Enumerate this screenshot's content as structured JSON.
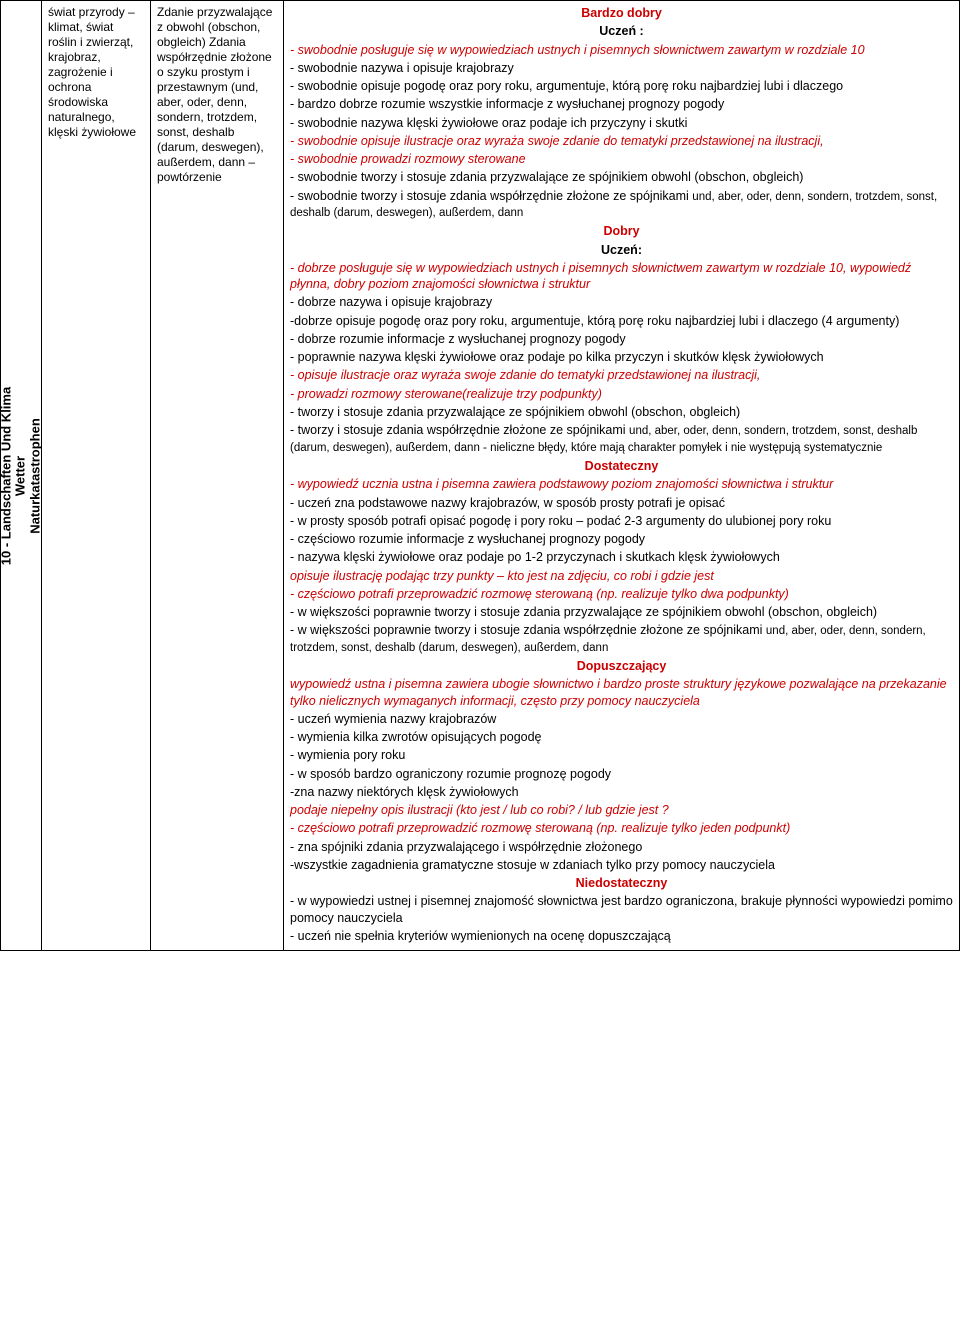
{
  "rotated_title": "10 - Landschaften Und Klima\nWetter\nNaturkatastrophen",
  "col1": "świat przyrody – klimat, świat roślin i zwierząt, krajobraz, zagrożenie i ochrona środowiska naturalnego, klęski żywiołowe",
  "col2": "Zdanie przyzwalające z obwohl (obschon, obgleich) Zdania współrzędnie złożone o szyku prostym i przestawnym (und, aber, oder, denn, sondern, trotzdem, sonst, deshalb (darum, deswegen), außerdem, dann – powtórzenie",
  "h_bd": "Bardzo dobry",
  "h_uc": "Uczeń :",
  "bd": {
    "l1": "- swobodnie posługuje się w wypowiedziach ustnych i pisemnych słownictwem zawartym  w rozdziale 10",
    "l2": "- swobodnie nazywa i opisuje krajobrazy",
    "l3": "- swobodnie opisuje pogodę oraz pory roku, argumentuje, którą porę roku najbardziej lubi i dlaczego",
    "l4": "- bardzo dobrze rozumie wszystkie informacje z wysłuchanej prognozy pogody",
    "l5": "- swobodnie nazywa klęski żywiołowe oraz podaje ich przyczyny i skutki",
    "l6": "- swobodnie opisuje ilustracje oraz wyraża swoje zdanie do tematyki przedstawionej na ilustracji,",
    "l7": "- swobodnie prowadzi rozmowy sterowane",
    "l8": "- swobodnie tworzy i stosuje zdania przyzwalające ze spójnikiem obwohl (obschon, obgleich)",
    "l9a": "- swobodnie tworzy i stosuje zdania współrzędnie złożone ze spójnikami ",
    "l9b": "und, aber, oder, denn, sondern, trotzdem, sonst, deshalb (darum, deswegen), außerdem, dann"
  },
  "h_db": "Dobry",
  "h_uc2": "Uczeń:",
  "db": {
    "l1": "- dobrze posługuje się w wypowiedziach ustnych i pisemnych słownictwem zawartym w rozdziale 10, wypowiedź płynna, dobry poziom znajomości słownictwa i struktur",
    "l2": "- dobrze nazywa i opisuje krajobrazy",
    "l3": "-dobrze  opisuje pogodę oraz pory roku, argumentuje, którą porę roku najbardziej lubi i dlaczego (4 argumenty)",
    "l4": "- dobrze rozumie informacje z wysłuchanej prognozy pogody",
    "l5": "- poprawnie nazywa klęski żywiołowe oraz podaje po kilka przyczyn i skutków klęsk żywiołowych",
    "l6": "- opisuje ilustracje oraz wyraża swoje zdanie do tematyki przedstawionej na ilustracji,",
    "l7": "- prowadzi rozmowy sterowane(realizuje trzy podpunkty)",
    "l8": "- tworzy i stosuje zdania przyzwalające ze spójnikiem obwohl (obschon, obgleich)",
    "l9a": "- tworzy i stosuje zdania współrzędnie złożone ze spójnikami ",
    "l9b": "und, aber, oder, denn, sondern, trotzdem, sonst, deshalb (darum, deswegen), außerdem, dann - nieliczne błędy, które mają charakter pomyłek i nie występują systematycznie"
  },
  "h_ds": "Dostateczny",
  "ds": {
    "l1": "- wypowiedź ucznia ustna i pisemna zawiera podstawowy poziom znajomości słownictwa i struktur",
    "l2": "- uczeń zna podstawowe nazwy krajobrazów, w sposób prosty potrafi je opisać",
    "l3": "- w prosty sposób potrafi opisać pogodę i pory roku – podać 2-3 argumenty  do ulubionej pory roku",
    "l4": "- częściowo rozumie informacje z wysłuchanej prognozy pogody",
    "l5": "- nazywa klęski żywiołowe oraz podaje po 1-2 przyczynach i skutkach klęsk żywiołowych",
    "l6": "opisuje ilustrację podając trzy punkty – kto jest na zdjęciu, co robi i gdzie jest",
    "l7": "- częściowo potrafi przeprowadzić rozmowę sterowaną (np. realizuje tylko dwa podpunkty)",
    "l8": "- w większości poprawnie tworzy i stosuje zdania przyzwalające ze spójnikiem obwohl (obschon, obgleich)",
    "l9a": "- w większości poprawnie tworzy i stosuje zdania współrzędnie złożone ze spójnikami ",
    "l9b": "und, aber, oder, denn, sondern, trotzdem, sonst, deshalb (darum, deswegen), außerdem, dann"
  },
  "h_dp": "Dopuszczający",
  "dp": {
    "l1": "wypowiedź ustna i pisemna zawiera ubogie słownictwo i bardzo proste struktury językowe pozwalające na przekazanie tylko nielicznych wymaganych informacji, często przy pomocy nauczyciela",
    "l2": "- uczeń wymienia nazwy krajobrazów",
    "l3": "- wymienia kilka zwrotów opisujących pogodę",
    "l4": "- wymienia pory roku",
    "l5": "- w sposób bardzo ograniczony rozumie prognozę pogody",
    "l6": "-zna nazwy niektórych klęsk żywiołowych",
    "l7": "podaje niepełny opis ilustracji (kto jest / lub co robi? / lub gdzie jest ?",
    "l8": "- częściowo potrafi przeprowadzić rozmowę sterowaną (np. realizuje tylko jeden podpunkt)",
    "l9": "- zna spójniki zdania przyzwalającego i współrzędnie złożonego",
    "l10": "-wszystkie zagadnienia gramatyczne stosuje w zdaniach tylko przy pomocy nauczyciela"
  },
  "h_nd": "Niedostateczny",
  "nd": {
    "l1": "- w wypowiedzi ustnej i pisemnej znajomość słownictwa jest bardzo ograniczona, brakuje płynności wypowiedzi pomimo pomocy nauczyciela",
    "l2": "- uczeń nie spełnia kryteriów wymienionych na ocenę dopuszczającą"
  }
}
